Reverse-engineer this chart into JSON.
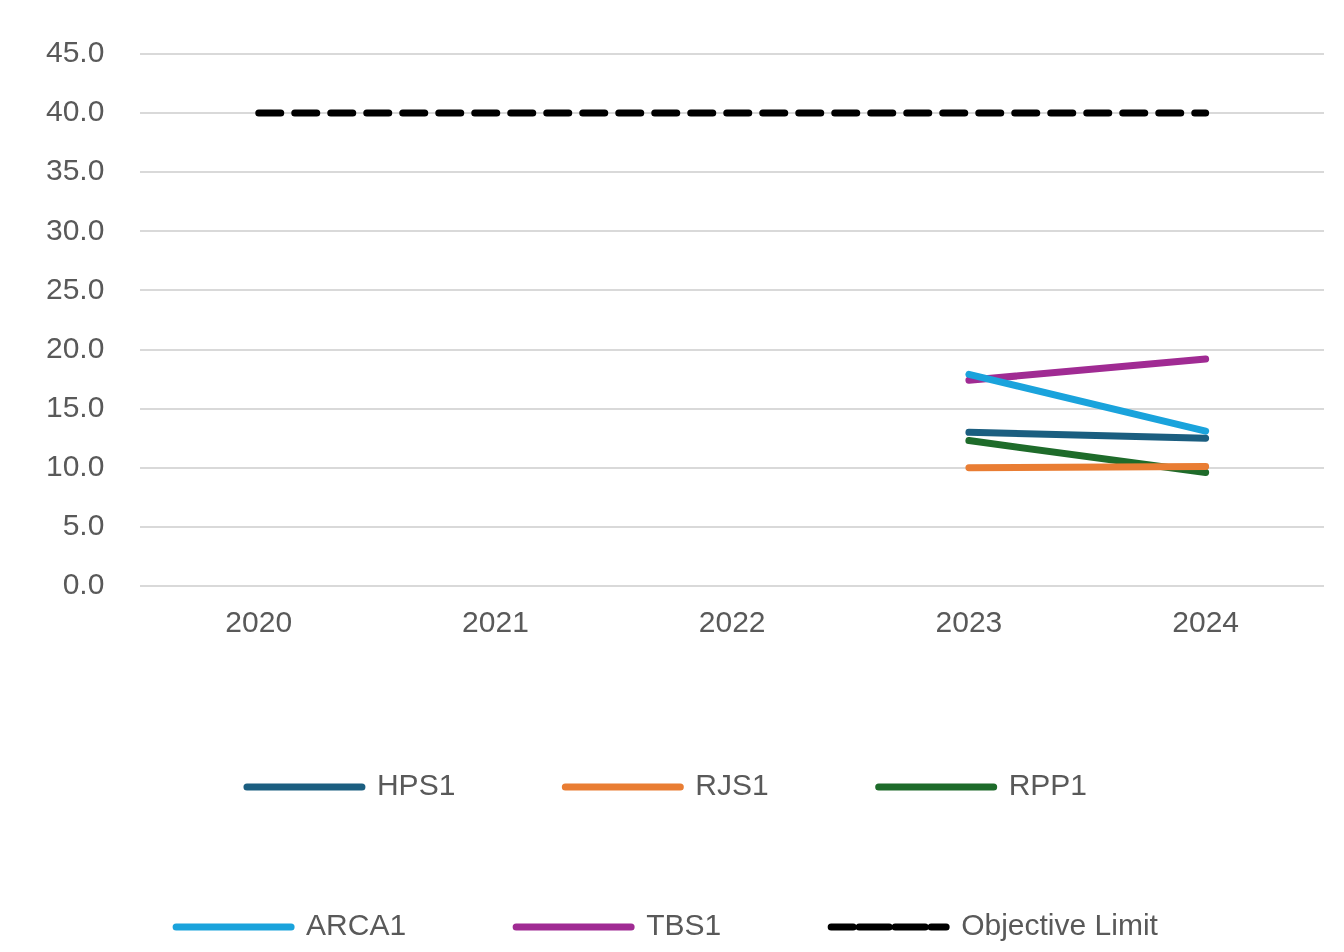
{
  "chart_data": {
    "type": "line",
    "categories": [
      "2020",
      "2021",
      "2022",
      "2023",
      "2024"
    ],
    "series": [
      {
        "name": "HPS1",
        "color": "#1b5e80",
        "values": [
          null,
          null,
          null,
          13.0,
          12.5
        ]
      },
      {
        "name": "RJS1",
        "color": "#e97d33",
        "values": [
          null,
          null,
          null,
          10.0,
          10.1
        ]
      },
      {
        "name": "RPP1",
        "color": "#1e6b2a",
        "values": [
          null,
          null,
          null,
          12.3,
          9.6
        ]
      },
      {
        "name": "ARCA1",
        "color": "#1aa3dc",
        "values": [
          null,
          null,
          null,
          17.9,
          13.1
        ]
      },
      {
        "name": "TBS1",
        "color": "#a02b93",
        "values": [
          null,
          null,
          null,
          17.4,
          19.2
        ]
      },
      {
        "name": "Objective Limit",
        "color": "#000000",
        "line_style": "dashed",
        "values": [
          40,
          40,
          40,
          40,
          40
        ]
      }
    ],
    "ylim": [
      0,
      45
    ],
    "yticks": [
      {
        "value": 0,
        "label": "0.0"
      },
      {
        "value": 5,
        "label": "5.0"
      },
      {
        "value": 10,
        "label": "10.0"
      },
      {
        "value": 15,
        "label": "15.0"
      },
      {
        "value": 20,
        "label": "20.0"
      },
      {
        "value": 25,
        "label": "25.0"
      },
      {
        "value": 30,
        "label": "30.0"
      },
      {
        "value": 35,
        "label": "35.0"
      },
      {
        "value": 40,
        "label": "40.0"
      },
      {
        "value": 45,
        "label": "45.0"
      }
    ],
    "grid": "y",
    "legend": "bottom",
    "marker": "none",
    "line_style": "solid"
  }
}
